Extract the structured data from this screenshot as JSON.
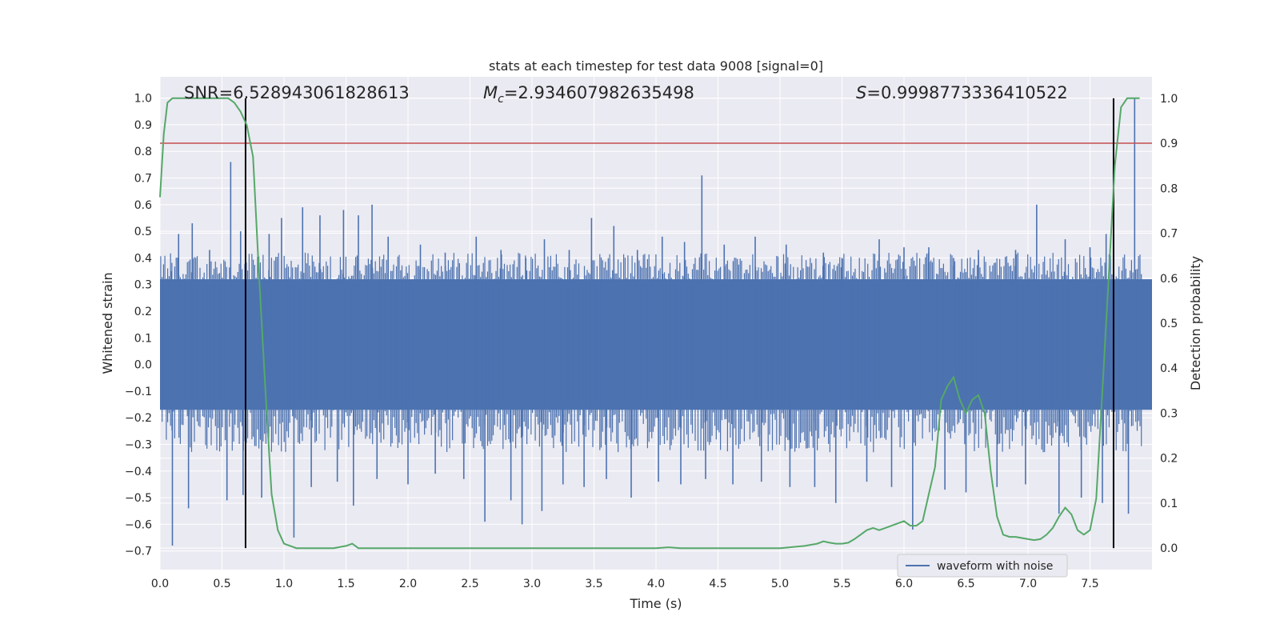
{
  "chart_data": {
    "type": "line",
    "title": "stats at each timestep for test data 9008 [signal=0]",
    "xlabel": "Time (s)",
    "ylabel_left": "Whitened strain",
    "ylabel_right": "Detection probability",
    "xlim": [
      0.0,
      8.0
    ],
    "ylim_left": [
      -0.77,
      1.08
    ],
    "ylim_right": [
      -0.0477,
      1.0477
    ],
    "x_ticks": [
      "0.0",
      "0.5",
      "1.0",
      "1.5",
      "2.0",
      "2.5",
      "3.0",
      "3.5",
      "4.0",
      "4.5",
      "5.0",
      "5.5",
      "6.0",
      "6.5",
      "7.0",
      "7.5"
    ],
    "x_tick_values": [
      0.0,
      0.5,
      1.0,
      1.5,
      2.0,
      2.5,
      3.0,
      3.5,
      4.0,
      4.5,
      5.0,
      5.5,
      6.0,
      6.5,
      7.0,
      7.5
    ],
    "y_ticks_left": [
      "1.0",
      "0.9",
      "0.8",
      "0.7",
      "0.6",
      "0.5",
      "0.4",
      "0.3",
      "0.2",
      "0.1",
      "0.0",
      "−0.1",
      "−0.2",
      "−0.3",
      "−0.4",
      "−0.5",
      "−0.6",
      "−0.7"
    ],
    "y_tick_values_left": [
      1.0,
      0.9,
      0.8,
      0.7,
      0.6,
      0.5,
      0.4,
      0.3,
      0.2,
      0.1,
      0.0,
      -0.1,
      -0.2,
      -0.3,
      -0.4,
      -0.5,
      -0.6,
      -0.7
    ],
    "y_ticks_right": [
      "1.0",
      "0.9",
      "0.8",
      "0.7",
      "0.6",
      "0.5",
      "0.4",
      "0.3",
      "0.2",
      "0.1",
      "0.0"
    ],
    "y_tick_values_right": [
      1.0,
      0.9,
      0.8,
      0.7,
      0.6,
      0.5,
      0.4,
      0.3,
      0.2,
      0.1,
      0.0
    ],
    "annotations": {
      "snr": "SNR=6.528943061828613",
      "mc_symbol": "M",
      "mc_sub": "c",
      "mc_value": "=2.934607982635498",
      "s_symbol": "S",
      "s_value": "=0.9998773336410522"
    },
    "threshold_right": 0.9,
    "vertical_markers_x": [
      0.69,
      7.69
    ],
    "waveform": {
      "name": "waveform with noise",
      "color": "#4c72b0",
      "dense_band": [
        -0.17,
        0.32
      ],
      "positive_spikes": [
        [
          0.09,
          0.35
        ],
        [
          0.15,
          0.49
        ],
        [
          0.26,
          0.53
        ],
        [
          0.4,
          0.43
        ],
        [
          0.57,
          0.76
        ],
        [
          0.65,
          0.5
        ],
        [
          0.88,
          0.49
        ],
        [
          0.98,
          0.55
        ],
        [
          1.15,
          0.59
        ],
        [
          1.29,
          0.56
        ],
        [
          1.48,
          0.58
        ],
        [
          1.6,
          0.56
        ],
        [
          1.71,
          0.6
        ],
        [
          1.84,
          0.48
        ],
        [
          2.1,
          0.45
        ],
        [
          2.3,
          0.42
        ],
        [
          2.55,
          0.48
        ],
        [
          2.75,
          0.43
        ],
        [
          2.95,
          0.4
        ],
        [
          3.1,
          0.47
        ],
        [
          3.3,
          0.43
        ],
        [
          3.48,
          0.55
        ],
        [
          3.66,
          0.52
        ],
        [
          3.85,
          0.43
        ],
        [
          4.05,
          0.48
        ],
        [
          4.23,
          0.46
        ],
        [
          4.37,
          0.71
        ],
        [
          4.55,
          0.45
        ],
        [
          4.8,
          0.48
        ],
        [
          5.05,
          0.45
        ],
        [
          5.35,
          0.42
        ],
        [
          5.5,
          0.4
        ],
        [
          5.8,
          0.47
        ],
        [
          6.0,
          0.44
        ],
        [
          6.2,
          0.44
        ],
        [
          6.4,
          0.4
        ],
        [
          6.6,
          0.43
        ],
        [
          6.9,
          0.43
        ],
        [
          7.07,
          0.6
        ],
        [
          7.3,
          0.47
        ],
        [
          7.5,
          0.44
        ],
        [
          7.63,
          0.49
        ],
        [
          7.86,
          1.0
        ]
      ],
      "negative_spikes": [
        [
          0.1,
          -0.68
        ],
        [
          0.23,
          -0.54
        ],
        [
          0.54,
          -0.51
        ],
        [
          0.67,
          -0.49
        ],
        [
          0.82,
          -0.5
        ],
        [
          1.08,
          -0.65
        ],
        [
          1.22,
          -0.46
        ],
        [
          1.43,
          -0.44
        ],
        [
          1.56,
          -0.53
        ],
        [
          1.75,
          -0.43
        ],
        [
          2.0,
          -0.45
        ],
        [
          2.22,
          -0.41
        ],
        [
          2.45,
          -0.43
        ],
        [
          2.62,
          -0.59
        ],
        [
          2.83,
          -0.51
        ],
        [
          2.92,
          -0.6
        ],
        [
          3.08,
          -0.55
        ],
        [
          3.25,
          -0.45
        ],
        [
          3.42,
          -0.46
        ],
        [
          3.6,
          -0.43
        ],
        [
          3.8,
          -0.5
        ],
        [
          4.02,
          -0.44
        ],
        [
          4.2,
          -0.45
        ],
        [
          4.4,
          -0.43
        ],
        [
          4.62,
          -0.45
        ],
        [
          4.85,
          -0.44
        ],
        [
          5.08,
          -0.46
        ],
        [
          5.28,
          -0.46
        ],
        [
          5.45,
          -0.52
        ],
        [
          5.7,
          -0.44
        ],
        [
          5.9,
          -0.46
        ],
        [
          6.07,
          -0.62
        ],
        [
          6.33,
          -0.47
        ],
        [
          6.5,
          -0.48
        ],
        [
          6.75,
          -0.46
        ],
        [
          6.98,
          -0.45
        ],
        [
          7.25,
          -0.56
        ],
        [
          7.43,
          -0.5
        ],
        [
          7.6,
          -0.52
        ],
        [
          7.81,
          -0.56
        ]
      ]
    },
    "probability": {
      "color": "#55a868",
      "x": [
        0.0,
        0.03,
        0.06,
        0.1,
        0.2,
        0.3,
        0.4,
        0.5,
        0.55,
        0.6,
        0.65,
        0.7,
        0.75,
        0.8,
        0.85,
        0.9,
        0.95,
        1.0,
        1.1,
        1.2,
        1.3,
        1.4,
        1.5,
        1.55,
        1.6,
        1.7,
        1.8,
        1.9,
        2.0,
        2.2,
        2.4,
        2.6,
        2.8,
        3.0,
        3.2,
        3.4,
        3.6,
        3.8,
        4.0,
        4.1,
        4.2,
        4.3,
        4.4,
        4.5,
        4.6,
        4.8,
        5.0,
        5.2,
        5.3,
        5.35,
        5.4,
        5.45,
        5.5,
        5.55,
        5.6,
        5.65,
        5.7,
        5.75,
        5.8,
        5.85,
        5.9,
        5.95,
        6.0,
        6.05,
        6.1,
        6.15,
        6.2,
        6.25,
        6.3,
        6.35,
        6.4,
        6.45,
        6.5,
        6.55,
        6.6,
        6.65,
        6.7,
        6.75,
        6.8,
        6.85,
        6.9,
        7.0,
        7.05,
        7.1,
        7.15,
        7.2,
        7.25,
        7.3,
        7.35,
        7.4,
        7.45,
        7.5,
        7.55,
        7.6,
        7.65,
        7.7,
        7.75,
        7.8,
        7.85,
        7.9
      ],
      "y": [
        0.78,
        0.92,
        0.99,
        1.0,
        1.0,
        1.0,
        1.0,
        1.0,
        1.0,
        0.99,
        0.97,
        0.94,
        0.87,
        0.6,
        0.35,
        0.12,
        0.04,
        0.01,
        0.0,
        0.0,
        0.0,
        0.0,
        0.005,
        0.01,
        0.0,
        0.0,
        0.0,
        0.0,
        0.0,
        0.0,
        0.0,
        0.0,
        0.0,
        0.0,
        0.0,
        0.0,
        0.0,
        0.0,
        0.0,
        0.002,
        0.0,
        0.0,
        0.0,
        0.0,
        0.0,
        0.0,
        0.0,
        0.005,
        0.01,
        0.015,
        0.012,
        0.01,
        0.01,
        0.012,
        0.02,
        0.03,
        0.04,
        0.045,
        0.04,
        0.045,
        0.05,
        0.055,
        0.06,
        0.05,
        0.05,
        0.06,
        0.12,
        0.18,
        0.33,
        0.36,
        0.38,
        0.33,
        0.3,
        0.33,
        0.34,
        0.3,
        0.17,
        0.07,
        0.03,
        0.025,
        0.025,
        0.02,
        0.018,
        0.02,
        0.03,
        0.045,
        0.07,
        0.09,
        0.075,
        0.04,
        0.03,
        0.04,
        0.11,
        0.35,
        0.6,
        0.85,
        0.98,
        1.0,
        1.0,
        1.0
      ]
    },
    "threshold_color": "#c44e52",
    "marker_color": "#000000",
    "grid": true,
    "legend_position": "bottom-right",
    "legend_entries": [
      "waveform with noise"
    ]
  }
}
